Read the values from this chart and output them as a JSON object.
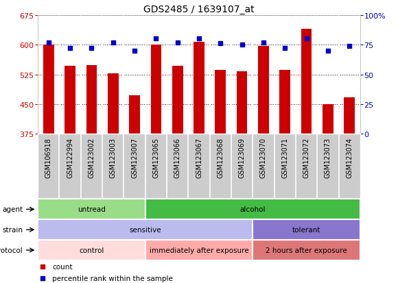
{
  "title": "GDS2485 / 1639107_at",
  "samples": [
    "GSM106918",
    "GSM122994",
    "GSM123002",
    "GSM123003",
    "GSM123007",
    "GSM123065",
    "GSM123066",
    "GSM123067",
    "GSM123068",
    "GSM123069",
    "GSM123070",
    "GSM123071",
    "GSM123072",
    "GSM123073",
    "GSM123074"
  ],
  "counts": [
    601,
    546,
    549,
    528,
    472,
    601,
    546,
    607,
    537,
    532,
    597,
    537,
    640,
    449,
    467
  ],
  "percentiles": [
    77,
    72,
    72,
    77,
    70,
    80,
    77,
    80,
    76,
    75,
    77,
    72,
    80,
    70,
    74
  ],
  "ylim_left": [
    375,
    675
  ],
  "yticks_left": [
    375,
    450,
    525,
    600,
    675
  ],
  "ylim_right": [
    0,
    100
  ],
  "yticks_right": [
    0,
    25,
    50,
    75,
    100
  ],
  "ytick_right_labels": [
    "0",
    "25",
    "50",
    "75",
    "100%"
  ],
  "bar_color": "#cc0000",
  "dot_color": "#0000cc",
  "agent_groups": [
    {
      "label": "untread",
      "start": 0,
      "end": 5,
      "color": "#99dd88"
    },
    {
      "label": "alcohol",
      "start": 5,
      "end": 15,
      "color": "#44bb44"
    }
  ],
  "strain_groups": [
    {
      "label": "sensitive",
      "start": 0,
      "end": 10,
      "color": "#bbbbee"
    },
    {
      "label": "tolerant",
      "start": 10,
      "end": 15,
      "color": "#8877cc"
    }
  ],
  "protocol_groups": [
    {
      "label": "control",
      "start": 0,
      "end": 5,
      "color": "#ffdddd"
    },
    {
      "label": "immediately after exposure",
      "start": 5,
      "end": 10,
      "color": "#ffaaaa"
    },
    {
      "label": "2 hours after exposure",
      "start": 10,
      "end": 15,
      "color": "#dd7777"
    }
  ],
  "legend_items": [
    {
      "label": "count",
      "color": "#cc0000"
    },
    {
      "label": "percentile rank within the sample",
      "color": "#0000cc"
    }
  ],
  "bg_color": "#ffffff",
  "plot_bg_color": "#ffffff",
  "xtick_bg_color": "#cccccc",
  "grid_color": "#000000",
  "bar_width": 0.5
}
